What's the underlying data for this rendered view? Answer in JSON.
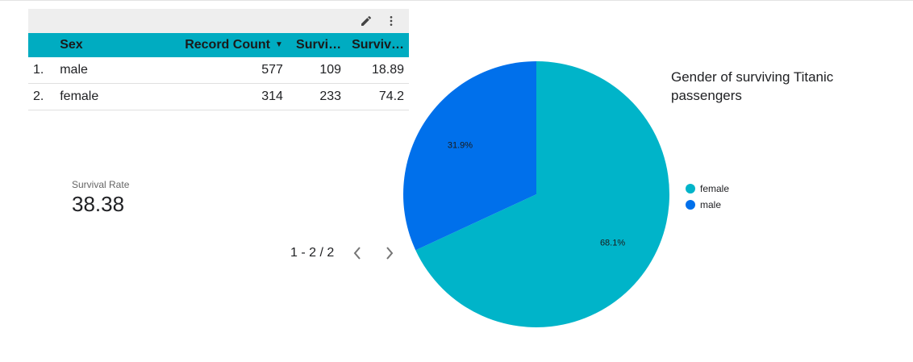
{
  "table": {
    "columns": [
      "Sex",
      "Record Count",
      "Survi…",
      "Surviv…"
    ],
    "sort_icon": "sort-desc-icon",
    "rows": [
      {
        "index": "1.",
        "sex": "male",
        "record_count": "577",
        "survived": "109",
        "survival_rate": "18.89"
      },
      {
        "index": "2.",
        "sex": "female",
        "record_count": "314",
        "survived": "233",
        "survival_rate": "74.2"
      }
    ],
    "header_color": "#00acc1"
  },
  "toolbar": {
    "icons": [
      "edit-icon",
      "more-vert-icon"
    ]
  },
  "scorecard": {
    "label": "Survival Rate",
    "value": "38.38"
  },
  "pagination": {
    "label": "1 - 2 / 2",
    "icons": [
      "chevron-left-icon",
      "chevron-right-icon"
    ]
  },
  "chart_data": {
    "type": "pie",
    "title": "Gender of surviving Titanic passengers",
    "slices": [
      {
        "name": "female",
        "value": 68.1,
        "label": "68.1%",
        "color": "#00b4c9"
      },
      {
        "name": "male",
        "value": 31.9,
        "label": "31.9%",
        "color": "#0070eb"
      }
    ],
    "legend": "right"
  }
}
